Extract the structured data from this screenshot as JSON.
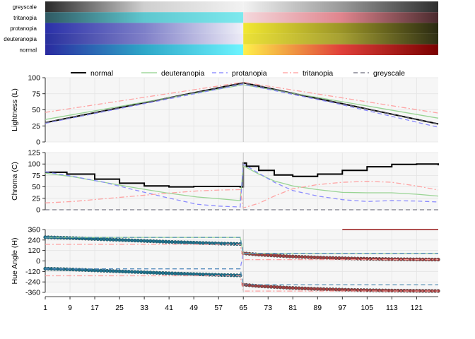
{
  "swatches": {
    "rows": [
      {
        "label": "greyscale",
        "left_stops": [
          "#2a2a2a",
          "#cfcfcf",
          "#f2f2f2"
        ],
        "right_stops": [
          "#f2f2f2",
          "#9a9a9a",
          "#2e2e2e"
        ]
      },
      {
        "label": "tritanopia",
        "left_stops": [
          "#2f5a63",
          "#5fc7cf",
          "#7de9ee"
        ],
        "right_stops": [
          "#f4d8dc",
          "#e0858e",
          "#4a2a2e"
        ]
      },
      {
        "label": "protanopia",
        "left_stops": [
          "#2a30a8",
          "#7e80c9",
          "#f0f0f8"
        ],
        "right_stops": [
          "#f2e832",
          "#9c9628",
          "#2a2a12"
        ]
      },
      {
        "label": "deuteranopia",
        "left_stops": [
          "#28309e",
          "#8080c8",
          "#ecebf6"
        ],
        "right_stops": [
          "#ece236",
          "#a6a033",
          "#2f2f14"
        ]
      },
      {
        "label": "normal",
        "left_stops": [
          "#2a2aa0",
          "#2fa7c8",
          "#6ef5ff"
        ],
        "right_stops": [
          "#fff04a",
          "#e0403a",
          "#7a0000"
        ]
      }
    ]
  },
  "legend": {
    "entries": [
      {
        "label": "normal",
        "color": "#000000",
        "dash": "solid"
      },
      {
        "label": "deuteranopia",
        "color": "#8fd08a",
        "dash": "solid"
      },
      {
        "label": "protanopia",
        "color": "#7f7fff",
        "dash": "dashed"
      },
      {
        "label": "tritanopia",
        "color": "#ff9a9a",
        "dash": "dashdot"
      },
      {
        "label": "greyscale",
        "color": "#6a6a7a",
        "dash": "dashed"
      }
    ]
  },
  "axis_x": {
    "ticks": [
      "1",
      "9",
      "17",
      "25",
      "33",
      "41",
      "49",
      "57",
      "65",
      "73",
      "81",
      "89",
      "97",
      "105",
      "113",
      "121"
    ],
    "xlim": [
      1,
      128
    ]
  },
  "chart_data": [
    {
      "type": "line",
      "ylabel": "Lightness (L)",
      "xlim": [
        1,
        128
      ],
      "ylim": [
        0,
        100
      ],
      "yticks": [
        "0",
        "25",
        "50",
        "75",
        "100"
      ],
      "grid": true,
      "series": [
        {
          "name": "normal",
          "color": "#000000",
          "dash": "solid",
          "x": [
            1,
            65,
            128
          ],
          "y": [
            30,
            92,
            28
          ]
        },
        {
          "name": "deuteranopia",
          "color": "#8fd08a",
          "dash": "solid",
          "x": [
            1,
            65,
            128
          ],
          "y": [
            35,
            89,
            37
          ]
        },
        {
          "name": "protanopia",
          "color": "#7f7fff",
          "dash": "dashed",
          "x": [
            1,
            65,
            95,
            128
          ],
          "y": [
            29,
            90,
            60,
            23
          ]
        },
        {
          "name": "tritanopia",
          "color": "#ff9a9a",
          "dash": "dashdot",
          "x": [
            1,
            65,
            128
          ],
          "y": [
            46,
            93,
            45
          ]
        },
        {
          "name": "greyscale",
          "color": "#6a6a7a",
          "dash": "dashed",
          "x": [
            1,
            65,
            128
          ],
          "y": [
            30,
            92,
            28
          ]
        }
      ]
    },
    {
      "type": "line",
      "ylabel": "Chroma (C)",
      "xlim": [
        1,
        128
      ],
      "ylim": [
        0,
        125
      ],
      "yticks": [
        "0",
        "25",
        "50",
        "75",
        "100",
        "125"
      ],
      "grid": true,
      "series": [
        {
          "name": "normal",
          "color": "#000000",
          "dash": "step",
          "x": [
            1,
            8,
            17,
            25,
            33,
            41,
            49,
            57,
            64,
            65,
            66,
            70,
            75,
            81,
            89,
            97,
            105,
            113,
            121,
            128
          ],
          "y": [
            82,
            78,
            67,
            58,
            52,
            50,
            51,
            51,
            50,
            102,
            95,
            86,
            76,
            73,
            78,
            86,
            94,
            99,
            100,
            97
          ]
        },
        {
          "name": "deuteranopia",
          "color": "#8fd08a",
          "dash": "solid",
          "x": [
            1,
            10,
            20,
            30,
            40,
            50,
            57,
            64,
            65,
            70,
            75,
            81,
            89,
            97,
            105,
            113,
            121,
            128
          ],
          "y": [
            80,
            72,
            60,
            48,
            37,
            28,
            24,
            20,
            96,
            78,
            63,
            52,
            44,
            38,
            37,
            37,
            34,
            30
          ]
        },
        {
          "name": "protanopia",
          "color": "#7f7fff",
          "dash": "dashed",
          "x": [
            1,
            10,
            20,
            30,
            40,
            50,
            57,
            64,
            65,
            70,
            75,
            81,
            89,
            97,
            105,
            113,
            121,
            128
          ],
          "y": [
            83,
            73,
            60,
            43,
            27,
            12,
            8,
            6,
            100,
            80,
            60,
            42,
            30,
            22,
            18,
            20,
            19,
            17
          ]
        },
        {
          "name": "tritanopia",
          "color": "#ff9a9a",
          "dash": "dashdot",
          "x": [
            1,
            10,
            20,
            30,
            40,
            50,
            57,
            64,
            65,
            70,
            75,
            81,
            89,
            97,
            105,
            113,
            121,
            128
          ],
          "y": [
            15,
            18,
            24,
            30,
            36,
            41,
            43,
            44,
            4,
            14,
            30,
            46,
            55,
            60,
            62,
            60,
            52,
            43
          ]
        },
        {
          "name": "greyscale",
          "color": "#6a6a7a",
          "dash": "dashed",
          "x": [
            1,
            64,
            65,
            128
          ],
          "y": [
            0,
            0,
            0,
            0
          ]
        }
      ]
    },
    {
      "type": "scatter",
      "ylabel": "Hue Angle (H)",
      "xlim": [
        1,
        128
      ],
      "ylim": [
        -360,
        360
      ],
      "yticks": [
        "360",
        "240",
        "120",
        "0",
        "-120",
        "-240",
        "-360"
      ],
      "grid": true,
      "series": [
        {
          "name": "normal",
          "color": "#1f6f8b",
          "marker": "circle",
          "x": [
            1,
            10,
            20,
            30,
            40,
            50,
            57,
            64
          ],
          "y": [
            272,
            262,
            248,
            234,
            220,
            208,
            200,
            194
          ]
        },
        {
          "name": "normal",
          "color": "#1f6f8b",
          "marker": "circle",
          "x": [
            1,
            10,
            20,
            30,
            40,
            50,
            57,
            64
          ],
          "y": [
            -88,
            -98,
            -112,
            -126,
            -140,
            -152,
            -160,
            -166
          ]
        },
        {
          "name": "normal",
          "color": "#a04040",
          "marker": "circle",
          "x": [
            65,
            70,
            80,
            90,
            100,
            110,
            120,
            128
          ],
          "y": [
            88,
            72,
            52,
            38,
            28,
            22,
            18,
            16
          ]
        },
        {
          "name": "normal",
          "color": "#a04040",
          "marker": "circle",
          "x": [
            65,
            70,
            80,
            90,
            100,
            110,
            120,
            128
          ],
          "y": [
            -272,
            -288,
            -308,
            -322,
            -332,
            -338,
            -342,
            -344
          ]
        },
        {
          "name": "deuteranopia",
          "color": "#8fd08a",
          "dash": "solid",
          "x": [
            1,
            64,
            65,
            128
          ],
          "y": [
            270,
            270,
            85,
            85
          ]
        },
        {
          "name": "protanopia",
          "color": "#7f7fff",
          "dash": "dashed",
          "x": [
            1,
            64,
            65,
            128
          ],
          "y": [
            -90,
            -90,
            88,
            88
          ]
        },
        {
          "name": "tritanopia",
          "color": "#ff9a9a",
          "dash": "dashdot",
          "x": [
            1,
            64,
            65,
            128
          ],
          "y": [
            190,
            190,
            15,
            15
          ]
        },
        {
          "name": "tritanopia",
          "color": "#ff9a9a",
          "dash": "dashdot",
          "x": [
            1,
            64,
            65,
            128
          ],
          "y": [
            -170,
            -170,
            -345,
            -345
          ]
        },
        {
          "name": "greyscale",
          "color": "#4a8ab0",
          "dash": "dashed",
          "x": [
            1,
            64,
            65,
            128
          ],
          "y": [
            270,
            270,
            88,
            88
          ]
        },
        {
          "name": "greyscale",
          "color": "#4a8ab0",
          "dash": "dashed",
          "x": [
            1,
            64,
            65,
            128
          ],
          "y": [
            -90,
            -90,
            -272,
            -272
          ]
        },
        {
          "name": "normal",
          "color": "#b05050",
          "dash": "solid",
          "x": [
            97,
            128
          ],
          "y": [
            360,
            360
          ]
        }
      ]
    }
  ]
}
